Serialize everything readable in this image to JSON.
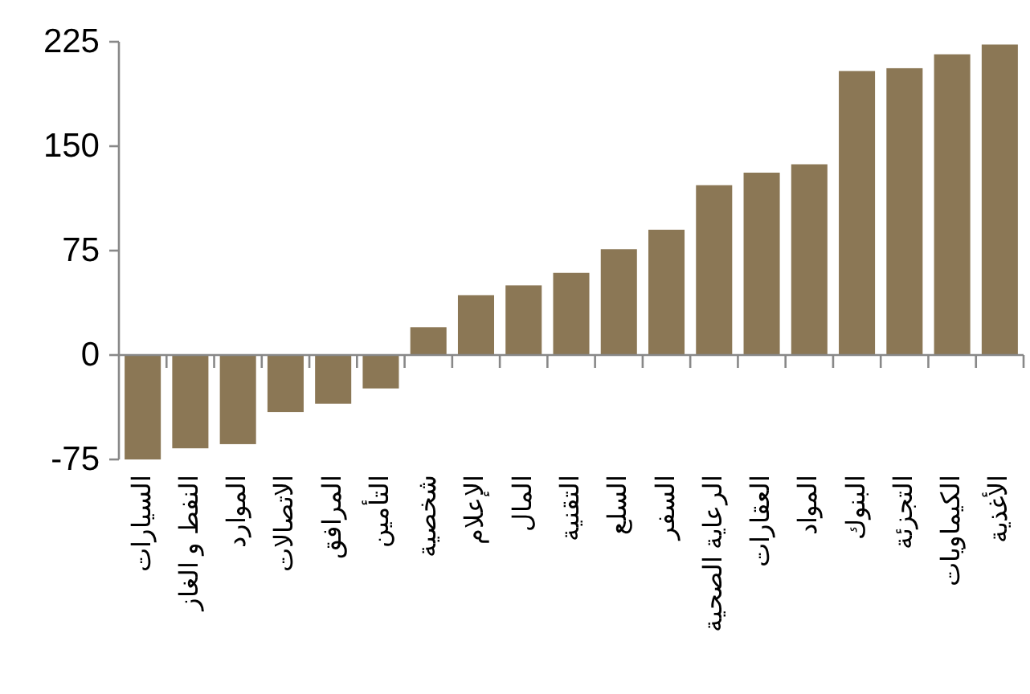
{
  "chart_data": {
    "type": "bar",
    "categories": [
      "السيارات",
      "النفط و الغاز",
      "الموارد",
      "الاتصالات",
      "المرافق",
      "التأمين",
      "شخصية",
      "الإعلام",
      "المال",
      "التقنية",
      "السلع",
      "السفر",
      "الرعاية الصحية",
      "العقارات",
      "المواد",
      "البنوك",
      "التجزئة",
      "الكيماويات",
      "الأغذية"
    ],
    "values": [
      -75,
      -67,
      -64,
      -41,
      -35,
      -24,
      20,
      43,
      50,
      59,
      76,
      90,
      122,
      131,
      137,
      204,
      206,
      216,
      223
    ],
    "color": "#8b7755",
    "ylim": [
      -75,
      225
    ],
    "yticks": [
      -75,
      0,
      75,
      150,
      225
    ]
  }
}
